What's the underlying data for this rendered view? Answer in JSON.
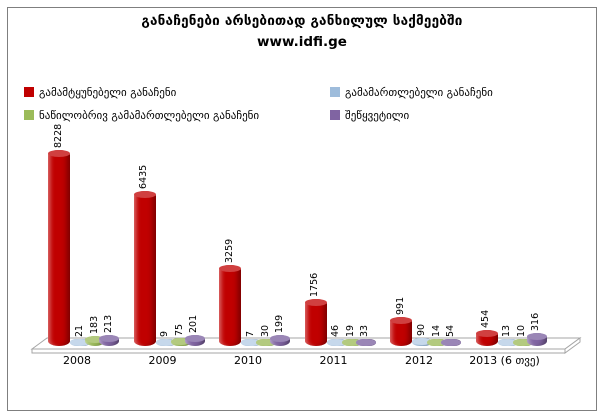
{
  "title": "განაჩენები არსებითად განხილულ საქმეებში",
  "subtitle": "www.idfi.ge",
  "legend": [
    {
      "label": "გამამტყუნებელი განაჩენი",
      "color": "#c00000"
    },
    {
      "label": "გამამართლებელი განაჩენი",
      "color": "#9ebcdb"
    },
    {
      "label": "ნაწილობრივ გამამართლებელი განაჩენი",
      "color": "#9bbb59"
    },
    {
      "label": "შეწყვეტილი",
      "color": "#8064a2"
    }
  ],
  "chart_data": {
    "type": "bar",
    "style": "3d-cylinder",
    "title": "განაჩენები არსებითად განხილულ საქმეებში",
    "subtitle": "www.idfi.ge",
    "legend_position": "top",
    "data_labels": true,
    "grid": false,
    "ylim": [
      0,
      8228
    ],
    "categories": [
      "2008",
      "2009",
      "2010",
      "2011",
      "2012",
      "2013 (6 თვე)"
    ],
    "series": [
      {
        "name": "გამამტყუნებელი განაჩენი",
        "color": "#c00000",
        "cap_color": "#d04040",
        "values": [
          8228,
          6435,
          3259,
          1756,
          991,
          454
        ]
      },
      {
        "name": "გამამართლებელი განაჩენი",
        "color": "#9ebcdb",
        "cap_color": "#c6d8eb",
        "values": [
          21,
          9,
          7,
          46,
          90,
          13
        ]
      },
      {
        "name": "ნაწილობრივ გამამართლებელი განაჩენი",
        "color": "#9bbb59",
        "cap_color": "#b3ca7f",
        "values": [
          183,
          75,
          30,
          19,
          14,
          10
        ]
      },
      {
        "name": "შეწყვეტილი",
        "color": "#8064a2",
        "cap_color": "#9a86b6",
        "values": [
          213,
          201,
          199,
          33,
          54,
          316
        ]
      }
    ]
  }
}
